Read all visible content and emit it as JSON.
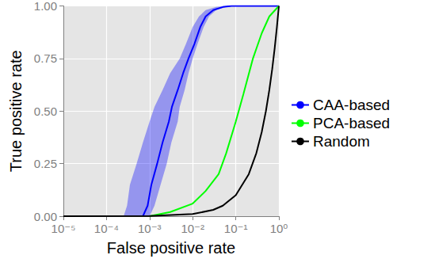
{
  "chart_data": {
    "type": "line",
    "x_label": "False positive rate",
    "y_label": "True positive rate",
    "log": "x",
    "grid": true,
    "legend": "right",
    "xlim": [
      1e-05,
      1
    ],
    "xticks": [
      {
        "value": 1e-05,
        "label": "10⁻⁵"
      },
      {
        "value": 0.0001,
        "label": "10⁻⁴"
      },
      {
        "value": 0.001,
        "label": "10⁻³"
      },
      {
        "value": 0.01,
        "label": "10⁻²"
      },
      {
        "value": 0.1,
        "label": "10⁻¹"
      },
      {
        "value": 1,
        "label": "10⁰"
      }
    ],
    "ylim": [
      0,
      1
    ],
    "yticks": [
      {
        "value": 0,
        "label": "0.00"
      },
      {
        "value": 0.25,
        "label": "0.25"
      },
      {
        "value": 0.5,
        "label": "0.50"
      },
      {
        "value": 0.75,
        "label": "0.75"
      },
      {
        "value": 1,
        "label": "1.00"
      }
    ],
    "series": [
      {
        "name": "CAA-based",
        "color": "#0000ff",
        "x": [
          0.0007,
          0.0009,
          0.0011,
          0.0015,
          0.002,
          0.0028,
          0.0033,
          0.0045,
          0.006,
          0.008,
          0.011,
          0.015,
          0.02,
          0.03,
          0.05,
          0.08,
          1
        ],
        "values": [
          0,
          0.05,
          0.15,
          0.25,
          0.35,
          0.45,
          0.52,
          0.6,
          0.68,
          0.75,
          0.82,
          0.9,
          0.95,
          0.98,
          0.995,
          1,
          1
        ],
        "x_lower": [
          0.00025,
          0.0003,
          0.00035,
          0.0005,
          0.0007,
          0.001,
          0.0013,
          0.002,
          0.003,
          0.005,
          0.007,
          0.01,
          0.014,
          0.02,
          0.035,
          0.06,
          1
        ],
        "x_upper": [
          0.001,
          0.0013,
          0.0018,
          0.0025,
          0.0032,
          0.0045,
          0.005,
          0.0065,
          0.008,
          0.01,
          0.013,
          0.018,
          0.024,
          0.035,
          0.06,
          0.09,
          1
        ]
      },
      {
        "name": "PCA-based",
        "color": "#00ff00",
        "x": [
          0.001,
          0.003,
          0.01,
          0.02,
          0.04,
          0.06,
          0.1,
          0.15,
          0.25,
          0.4,
          0.6,
          1
        ],
        "values": [
          0,
          0.02,
          0.06,
          0.12,
          0.2,
          0.3,
          0.45,
          0.58,
          0.75,
          0.87,
          0.95,
          1
        ]
      },
      {
        "name": "Random",
        "color": "#000000",
        "x": [
          1e-05,
          0.001,
          0.01,
          0.03,
          0.05,
          0.1,
          0.2,
          0.3,
          0.4,
          0.5,
          0.6,
          0.7,
          0.8,
          0.9,
          1
        ],
        "values": [
          1e-05,
          0.001,
          0.01,
          0.03,
          0.05,
          0.1,
          0.2,
          0.3,
          0.4,
          0.5,
          0.6,
          0.7,
          0.8,
          0.9,
          1
        ]
      }
    ]
  }
}
